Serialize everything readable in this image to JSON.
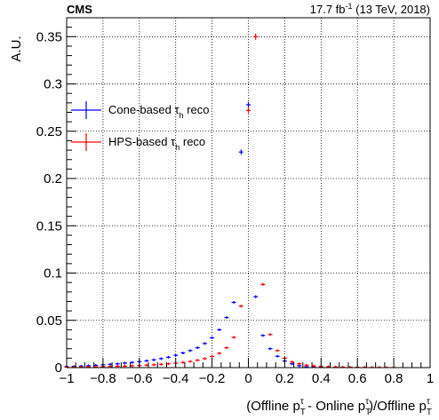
{
  "chart_data": {
    "type": "scatter",
    "experiment": "CMS",
    "lumi": "17.7 fb",
    "lumi_exp": "-1",
    "lumi_suffix": " (13 TeV, 2018)",
    "xlabel_pre": "(Offline p",
    "xlabel_mid": " - Online p",
    "xlabel_post": ")/Offline p",
    "xlabel_sup": "τ",
    "xlabel_sub": "T",
    "ylabel": "A.U.",
    "xlim": [
      -1,
      1
    ],
    "ylim": [
      0,
      0.37
    ],
    "grid": true,
    "legend_position": "top-left",
    "x_ticks": [
      {
        "value": -1,
        "label": "−1"
      },
      {
        "value": -0.8,
        "label": "−0.8"
      },
      {
        "value": -0.6,
        "label": "−0.6"
      },
      {
        "value": -0.4,
        "label": "−0.4"
      },
      {
        "value": -0.2,
        "label": "−0.2"
      },
      {
        "value": 0,
        "label": "0"
      },
      {
        "value": 0.2,
        "label": "0.2"
      },
      {
        "value": 0.4,
        "label": "0.4"
      },
      {
        "value": 0.6,
        "label": "0.6"
      },
      {
        "value": 0.8,
        "label": "0.8"
      },
      {
        "value": 1,
        "label": "1"
      }
    ],
    "y_ticks": [
      {
        "value": 0,
        "label": "0"
      },
      {
        "value": 0.05,
        "label": "0.05"
      },
      {
        "value": 0.1,
        "label": "0.1"
      },
      {
        "value": 0.15,
        "label": "0.15"
      },
      {
        "value": 0.2,
        "label": "0.2"
      },
      {
        "value": 0.25,
        "label": "0.25"
      },
      {
        "value": 0.3,
        "label": "0.3"
      },
      {
        "value": 0.35,
        "label": "0.35"
      }
    ],
    "bin_width": 0.04,
    "series": [
      {
        "name_main": "Cone-based τ",
        "name_sub": "h",
        "name_post": " reco",
        "color": "#0000ff",
        "x": [
          -1.0,
          -0.96,
          -0.92,
          -0.88,
          -0.84,
          -0.8,
          -0.76,
          -0.72,
          -0.68,
          -0.64,
          -0.6,
          -0.56,
          -0.52,
          -0.48,
          -0.44,
          -0.4,
          -0.36,
          -0.32,
          -0.28,
          -0.24,
          -0.2,
          -0.16,
          -0.12,
          -0.08,
          -0.04,
          0.0,
          0.04,
          0.08,
          0.12,
          0.16,
          0.2,
          0.24,
          0.28,
          0.32,
          0.36,
          0.4,
          0.44,
          0.48
        ],
        "y": [
          0.001,
          0.0013,
          0.0016,
          0.002,
          0.0024,
          0.003,
          0.0035,
          0.004,
          0.0048,
          0.0055,
          0.0063,
          0.0072,
          0.0082,
          0.0095,
          0.011,
          0.013,
          0.0155,
          0.018,
          0.021,
          0.0255,
          0.0315,
          0.04,
          0.053,
          0.069,
          0.228,
          0.278,
          0.075,
          0.034,
          0.02,
          0.012,
          0.007,
          0.004,
          0.002,
          0.001,
          0.0006,
          0.0004,
          0.0002,
          0.0001
        ]
      },
      {
        "name_main": "HPS-based τ",
        "name_sub": "h",
        "name_post": " reco",
        "color": "#ff0000",
        "x": [
          -1.0,
          -0.96,
          -0.92,
          -0.88,
          -0.84,
          -0.8,
          -0.76,
          -0.72,
          -0.68,
          -0.64,
          -0.6,
          -0.56,
          -0.52,
          -0.48,
          -0.44,
          -0.4,
          -0.36,
          -0.32,
          -0.28,
          -0.24,
          -0.2,
          -0.16,
          -0.12,
          -0.08,
          -0.04,
          0.0,
          0.04,
          0.08,
          0.12,
          0.16,
          0.2,
          0.24,
          0.28,
          0.32,
          0.36,
          0.4,
          0.44,
          0.48,
          0.52,
          0.56,
          0.6,
          0.64,
          0.68,
          0.72,
          0.76,
          0.8
        ],
        "y": [
          0.0004,
          0.0005,
          0.0006,
          0.0007,
          0.0008,
          0.001,
          0.0012,
          0.0014,
          0.0016,
          0.0019,
          0.0022,
          0.0026,
          0.003,
          0.0035,
          0.004,
          0.0047,
          0.0055,
          0.0065,
          0.0078,
          0.0095,
          0.0118,
          0.0152,
          0.021,
          0.032,
          0.065,
          0.272,
          0.35,
          0.088,
          0.035,
          0.018,
          0.01,
          0.006,
          0.004,
          0.0026,
          0.0018,
          0.0012,
          0.0009,
          0.0007,
          0.0005,
          0.0004,
          0.0003,
          0.0003,
          0.0002,
          0.0002,
          0.0001,
          0.0001
        ]
      }
    ]
  }
}
